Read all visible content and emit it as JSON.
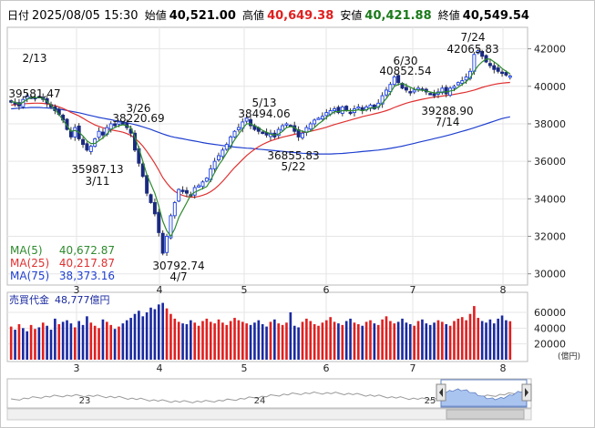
{
  "header": {
    "date_label": "日付",
    "datetime": "2025/08/05 15:30",
    "open_label": "始値",
    "open": "40,521.00",
    "high_label": "高値",
    "high": "40,649.38",
    "low_label": "安値",
    "low": "40,421.88",
    "close_label": "終値",
    "close": "40,549.54"
  },
  "colors": {
    "bull": "#1a40e6",
    "bear": "#1a2a80",
    "ma5": "#2e8b2e",
    "ma25": "#e03030",
    "ma75": "#2040d0",
    "up_bar": "#e02020",
    "down_bar": "#1a2aa0",
    "nav_fill": "#aac4f0"
  },
  "ma_legend": [
    {
      "label": "MA(5)",
      "value": "40,672.87",
      "color": "#2e8b2e"
    },
    {
      "label": "MA(25)",
      "value": "40,217.87",
      "color": "#e03030"
    },
    {
      "label": "MA(75)",
      "value": "38,373.16",
      "color": "#2040d0"
    }
  ],
  "volume_label": "売買代金",
  "volume_value": "48,777億円",
  "volume_unit": "(億円)",
  "nav_labels": [
    "23",
    "24",
    "25"
  ],
  "chart_data": [
    {
      "type": "candlestick",
      "x_ticks": [
        "3",
        "4",
        "5",
        "6",
        "7",
        "8"
      ],
      "y_ticks": [
        30000,
        32000,
        34000,
        36000,
        38000,
        40000,
        42000
      ],
      "ylim": [
        29500,
        43000
      ],
      "annotations": [
        {
          "value": "39581.47",
          "date": "2/13",
          "kind": "high"
        },
        {
          "value": "35987.13",
          "date": "3/11",
          "kind": "low"
        },
        {
          "value": "38220.69",
          "date": "3/26",
          "kind": "high"
        },
        {
          "value": "30792.74",
          "date": "4/7",
          "kind": "low"
        },
        {
          "value": "38494.06",
          "date": "5/13",
          "kind": "high"
        },
        {
          "value": "36855.83",
          "date": "5/22",
          "kind": "low"
        },
        {
          "value": "40852.54",
          "date": "6/30",
          "kind": "high"
        },
        {
          "value": "39288.90",
          "date": "7/14",
          "kind": "low"
        },
        {
          "value": "42065.83",
          "date": "7/24",
          "kind": "high"
        }
      ],
      "closes": [
        39150,
        39050,
        38950,
        39300,
        39500,
        39400,
        39350,
        39450,
        39300,
        39100,
        38900,
        38700,
        38500,
        38200,
        37700,
        37300,
        37800,
        37200,
        36900,
        36600,
        36800,
        37200,
        37600,
        37400,
        37800,
        38000,
        37900,
        38100,
        38000,
        37800,
        37500,
        36600,
        35900,
        35200,
        34300,
        33800,
        33200,
        32200,
        31100,
        32000,
        33100,
        33800,
        34500,
        34400,
        34300,
        34200,
        34600,
        34700,
        34900,
        35100,
        35600,
        36000,
        36300,
        36600,
        36900,
        37300,
        37600,
        37800,
        38100,
        38300,
        37900,
        37700,
        37600,
        37500,
        37400,
        37500,
        37300,
        37700,
        37900,
        38000,
        37900,
        37600,
        37300,
        37500,
        37800,
        38000,
        38200,
        38300,
        38400,
        38600,
        38700,
        38800,
        38600,
        38900,
        38700,
        38600,
        38800,
        38900,
        38700,
        38900,
        39000,
        38800,
        39100,
        39500,
        39800,
        40100,
        40500,
        40200,
        39900,
        39800,
        39700,
        39800,
        39900,
        39800,
        39700,
        39600,
        39500,
        39700,
        39900,
        39600,
        39900,
        40000,
        40200,
        40300,
        40500,
        40800,
        41700,
        41900,
        41600,
        41300,
        41100,
        40900,
        40800,
        40700,
        40600,
        40550
      ],
      "ma5": [
        39200,
        39150,
        39050,
        39150,
        39300,
        39400,
        39400,
        39400,
        39350,
        39200,
        39000,
        38750,
        38500,
        38200,
        37900,
        37600,
        37650,
        37550,
        37350,
        37100,
        36950,
        36950,
        37100,
        37250,
        37450,
        37700,
        37800,
        37900,
        37950,
        37900,
        37800,
        37300,
        36700,
        36000,
        35300,
        34800,
        34300,
        33600,
        32800,
        32300,
        32000,
        32400,
        33000,
        33400,
        33800,
        34200,
        34350,
        34450,
        34550,
        34650,
        35000,
        35400,
        35800,
        36100,
        36450,
        36800,
        37150,
        37450,
        37750,
        38000,
        38000,
        37900,
        37800,
        37650,
        37550,
        37450,
        37400,
        37450,
        37600,
        37800,
        37850,
        37800,
        37650,
        37600,
        37550,
        37600,
        37800,
        38000,
        38150,
        38350,
        38500,
        38650,
        38650,
        38700,
        38700,
        38700,
        38700,
        38750,
        38700,
        38750,
        38850,
        38850,
        38900,
        39100,
        39350,
        39650,
        40000,
        40100,
        40150,
        40050,
        39950,
        39850,
        39800,
        39800,
        39750,
        39700,
        39650,
        39650,
        39700,
        39700,
        39750,
        39800,
        39950,
        40100,
        40250,
        40450,
        40800,
        41100,
        41300,
        41450,
        41450,
        41300,
        41150,
        40950,
        40800,
        40670
      ],
      "ma25": [
        39000,
        39020,
        39040,
        39060,
        39080,
        39090,
        39100,
        39100,
        39090,
        39060,
        39020,
        38970,
        38900,
        38820,
        38720,
        38610,
        38520,
        38420,
        38300,
        38170,
        38050,
        37940,
        37860,
        37790,
        37730,
        37680,
        37640,
        37600,
        37550,
        37480,
        37380,
        37230,
        37040,
        36810,
        36530,
        36220,
        35890,
        35520,
        35130,
        34840,
        34590,
        34400,
        34270,
        34180,
        34120,
        34090,
        34090,
        34130,
        34190,
        34270,
        34380,
        34530,
        34720,
        34940,
        35180,
        35430,
        35670,
        35880,
        36100,
        36310,
        36480,
        36640,
        36780,
        36900,
        37000,
        37090,
        37160,
        37230,
        37290,
        37340,
        37390,
        37440,
        37480,
        37520,
        37560,
        37600,
        37650,
        37700,
        37760,
        37820,
        37890,
        37960,
        38020,
        38080,
        38140,
        38200,
        38260,
        38320,
        38380,
        38430,
        38480,
        38530,
        38580,
        38640,
        38700,
        38780,
        38870,
        38950,
        39030,
        39100,
        39160,
        39210,
        39260,
        39310,
        39350,
        39390,
        39420,
        39450,
        39480,
        39510,
        39540,
        39570,
        39610,
        39650,
        39690,
        39740,
        39800,
        39870,
        39940,
        40000,
        40050,
        40100,
        40140,
        40170,
        40190,
        40210
      ],
      "ma75": [
        38800,
        38820,
        38840,
        38850,
        38860,
        38870,
        38870,
        38870,
        38860,
        38850,
        38830,
        38810,
        38780,
        38750,
        38710,
        38670,
        38630,
        38590,
        38540,
        38490,
        38440,
        38390,
        38340,
        38300,
        38260,
        38220,
        38180,
        38140,
        38100,
        38060,
        38010,
        37960,
        37900,
        37840,
        37770,
        37700,
        37620,
        37540,
        37460,
        37390,
        37330,
        37280,
        37240,
        37200,
        37160,
        37120,
        37080,
        37040,
        37000,
        36960,
        36930,
        36900,
        36870,
        36840,
        36810,
        36780,
        36760,
        36740,
        36720,
        36700,
        36690,
        36670,
        36650,
        36630,
        36610,
        36590,
        36570,
        36550,
        36530,
        36510,
        36490,
        36470,
        36450,
        36430,
        36420,
        36410,
        36400,
        36390,
        36390,
        36390,
        36390,
        36400,
        36410,
        36420,
        36440,
        36460,
        36480,
        36500,
        36520,
        36540,
        36560,
        36580,
        36600,
        36630,
        36660,
        36690,
        36730,
        36770,
        36810,
        36860,
        36910,
        36960,
        37010,
        37060,
        37110,
        37160,
        37210,
        37260,
        37310,
        37360,
        37420,
        37480,
        37540,
        37600,
        37660,
        37720,
        37790,
        37860,
        37930,
        38000,
        38070,
        38140,
        38210,
        38280,
        38330,
        38373
      ]
    },
    {
      "type": "bar",
      "ylabel": "億円",
      "y_ticks": [
        20000,
        40000,
        60000
      ],
      "ylim": [
        0,
        75000
      ],
      "x_ticks": [
        "3",
        "4",
        "5",
        "6",
        "7",
        "8"
      ],
      "values": [
        42000,
        38000,
        45000,
        40000,
        36000,
        44000,
        39000,
        41000,
        47000,
        43000,
        38000,
        52000,
        45000,
        48000,
        50000,
        46000,
        41000,
        49000,
        44000,
        55000,
        47000,
        43000,
        40000,
        51000,
        48000,
        44000,
        39000,
        42000,
        46000,
        50000,
        53000,
        58000,
        62000,
        55000,
        60000,
        66000,
        64000,
        70000,
        72000,
        65000,
        58000,
        52000,
        48000,
        46000,
        45000,
        50000,
        47000,
        43000,
        49000,
        52000,
        48000,
        46000,
        51000,
        47000,
        44000,
        49000,
        53000,
        50000,
        48000,
        46000,
        44000,
        47000,
        50000,
        45000,
        42000,
        48000,
        51000,
        46000,
        44000,
        47000,
        60000,
        43000,
        41000,
        48000,
        52000,
        49000,
        45000,
        43000,
        47000,
        50000,
        54000,
        48000,
        46000,
        44000,
        49000,
        52000,
        47000,
        45000,
        43000,
        48000,
        50000,
        46000,
        44000,
        51000,
        55000,
        49000,
        46000,
        48000,
        52000,
        47000,
        45000,
        43000,
        49000,
        51000,
        46000,
        44000,
        47000,
        50000,
        48000,
        45000,
        43000,
        49000,
        52000,
        54000,
        50000,
        58000,
        68000,
        53000,
        49000,
        47000,
        51000,
        46000,
        52000,
        56000,
        50000,
        48777
      ],
      "up": [
        1,
        0,
        1,
        0,
        0,
        1,
        1,
        0,
        1,
        0,
        0,
        0,
        1,
        0,
        0,
        0,
        1,
        0,
        0,
        0,
        1,
        1,
        1,
        0,
        1,
        1,
        0,
        1,
        0,
        0,
        0,
        0,
        0,
        0,
        0,
        0,
        0,
        0,
        0,
        1,
        1,
        1,
        1,
        0,
        0,
        0,
        1,
        1,
        1,
        1,
        1,
        1,
        1,
        1,
        1,
        1,
        1,
        1,
        1,
        1,
        0,
        0,
        0,
        0,
        0,
        1,
        0,
        1,
        1,
        1,
        0,
        0,
        0,
        1,
        1,
        1,
        1,
        1,
        1,
        1,
        1,
        1,
        0,
        1,
        0,
        0,
        1,
        1,
        0,
        1,
        1,
        0,
        1,
        1,
        1,
        1,
        1,
        0,
        0,
        0,
        0,
        1,
        1,
        0,
        0,
        0,
        0,
        1,
        1,
        0,
        1,
        1,
        1,
        1,
        1,
        1,
        1,
        1,
        0,
        0,
        0,
        0,
        0,
        0,
        0,
        1
      ]
    },
    {
      "type": "area",
      "x_ticks": [
        "23",
        "24",
        "25"
      ]
    }
  ]
}
